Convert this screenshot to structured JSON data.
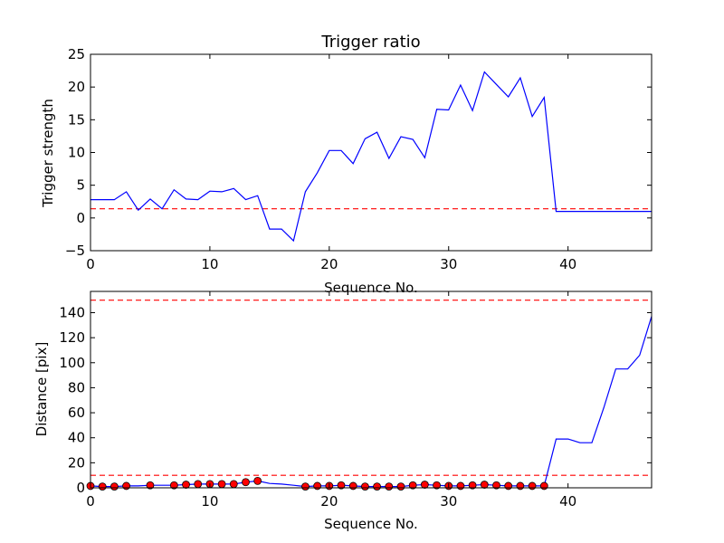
{
  "chart_data": [
    {
      "type": "line",
      "title": "Trigger ratio",
      "xlabel": "Sequence No.",
      "ylabel": "Trigger strength",
      "xlim": [
        0,
        47
      ],
      "ylim": [
        -5,
        25
      ],
      "xticks": [
        "0",
        "10",
        "20",
        "30",
        "40"
      ],
      "yticks": [
        "−5",
        "0",
        "5",
        "10",
        "15",
        "20",
        "25"
      ],
      "grid": false,
      "series": [
        {
          "color": "#0000ff",
          "x": [
            0,
            1,
            2,
            3,
            4,
            5,
            6,
            7,
            8,
            9,
            10,
            11,
            12,
            13,
            14,
            15,
            16,
            17,
            18,
            19,
            20,
            21,
            22,
            23,
            24,
            25,
            26,
            27,
            28,
            29,
            30,
            31,
            32,
            33,
            34,
            35,
            36,
            37,
            38,
            39,
            40,
            41,
            42,
            43,
            44,
            45,
            46,
            47
          ],
          "y": [
            2.8,
            2.8,
            2.8,
            4.0,
            1.2,
            2.9,
            1.4,
            4.3,
            2.9,
            2.8,
            4.1,
            4.0,
            4.5,
            2.8,
            3.4,
            -1.7,
            -1.7,
            -3.5,
            4.0,
            6.9,
            10.3,
            10.3,
            8.3,
            12.1,
            13.1,
            9.1,
            12.4,
            12.0,
            9.2,
            16.6,
            16.5,
            20.3,
            16.4,
            22.3,
            20.4,
            18.5,
            21.4,
            15.5,
            18.4,
            1.0,
            1.0,
            1.0,
            1.0,
            1.0,
            1.0,
            1.0,
            1.0,
            1.0
          ]
        }
      ],
      "hlines": [
        {
          "y": 1.4,
          "color": "#ff0000",
          "style": "dashed"
        }
      ]
    },
    {
      "type": "line",
      "title": "",
      "xlabel": "Sequence No.",
      "ylabel": "Distance [pix]",
      "xlim": [
        0,
        47
      ],
      "ylim": [
        0,
        157
      ],
      "xticks": [
        "0",
        "10",
        "20",
        "30",
        "40"
      ],
      "yticks": [
        "0",
        "20",
        "40",
        "60",
        "80",
        "100",
        "120",
        "140"
      ],
      "grid": false,
      "series": [
        {
          "color": "#0000ff",
          "x": [
            0,
            1,
            2,
            3,
            4,
            5,
            6,
            7,
            8,
            9,
            10,
            11,
            12,
            13,
            14,
            15,
            16,
            17,
            18,
            19,
            20,
            21,
            22,
            23,
            24,
            25,
            26,
            27,
            28,
            29,
            30,
            31,
            32,
            33,
            34,
            35,
            36,
            37,
            38,
            39,
            40,
            41,
            42,
            43,
            44,
            45,
            46,
            47
          ],
          "y": [
            1.5,
            1.0,
            1.0,
            1.5,
            1.5,
            2.0,
            2.0,
            2.0,
            2.5,
            3.0,
            3.0,
            3.0,
            3.0,
            4.5,
            5.5,
            3.5,
            3.0,
            2.0,
            1.0,
            1.5,
            1.5,
            2.0,
            1.5,
            1.0,
            1.0,
            1.0,
            1.0,
            2.0,
            2.5,
            2.0,
            1.5,
            1.5,
            2.0,
            2.5,
            2.0,
            1.5,
            1.5,
            1.5,
            1.5,
            39.0,
            39.0,
            36.0,
            36.0,
            64.0,
            95.0,
            95.0,
            106.0,
            137.0
          ]
        }
      ],
      "markers": {
        "color": "#ff0000",
        "shape": "circle",
        "x": [
          0,
          1,
          2,
          3,
          5,
          7,
          8,
          9,
          10,
          11,
          12,
          13,
          14,
          18,
          19,
          20,
          21,
          22,
          23,
          24,
          25,
          26,
          27,
          28,
          29,
          30,
          31,
          32,
          33,
          34,
          35,
          36,
          37,
          38
        ],
        "y": [
          1.5,
          1.0,
          1.0,
          1.5,
          2.0,
          2.0,
          2.5,
          3.0,
          3.0,
          3.0,
          3.0,
          4.5,
          5.5,
          1.0,
          1.5,
          1.5,
          2.0,
          1.5,
          1.0,
          1.0,
          1.0,
          1.0,
          2.0,
          2.5,
          2.0,
          1.5,
          1.5,
          2.0,
          2.5,
          2.0,
          1.5,
          1.5,
          1.5,
          1.5
        ]
      },
      "hlines": [
        {
          "y": 10,
          "color": "#ff0000",
          "style": "dashed"
        },
        {
          "y": 150,
          "color": "#ff0000",
          "style": "dashed"
        }
      ]
    }
  ]
}
